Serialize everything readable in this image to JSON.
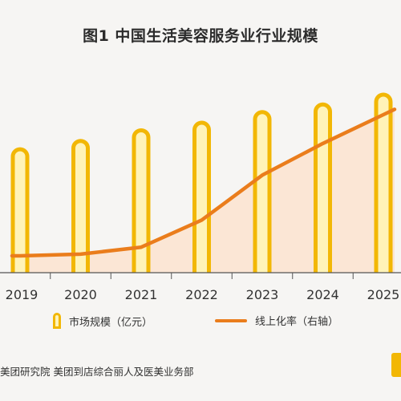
{
  "chart_data": {
    "type": "bar",
    "title": "图1 中国生活美容服务业行业规模",
    "categories": [
      "2019",
      "2020",
      "2021",
      "2022",
      "2023",
      "2024",
      "2025"
    ],
    "series": [
      {
        "name": "市场规模（亿元）",
        "type": "bar",
        "values": [
          132,
          143,
          157,
          167,
          181,
          191,
          204
        ]
      },
      {
        "name": "线上化率（右轴）",
        "type": "line",
        "values": [
          3.0,
          3.3,
          4.5,
          9.2,
          17.0,
          22.5,
          27.5
        ]
      }
    ],
    "legend": {
      "position": "bottom"
    },
    "grid": false
  },
  "source": "美团研究院 美团到店综合丽人及医美业务部",
  "colors": {
    "bar_outline": "#f2b705",
    "bar_fill": "#fff3b8",
    "line": "#ea7d1c",
    "area": "#fbe3cf"
  }
}
